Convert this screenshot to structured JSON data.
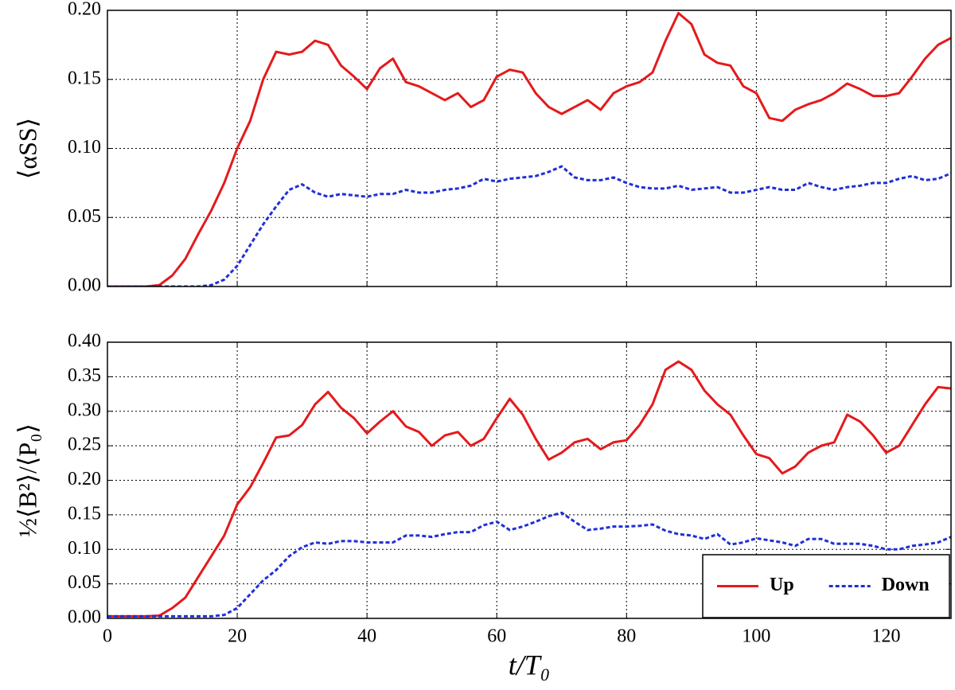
{
  "chart_data": [
    {
      "type": "line",
      "ylabel": "⟨αSS⟩",
      "show_xtick_labels": false,
      "grid": true,
      "xlim": [
        0,
        130
      ],
      "xticks": [
        0,
        20,
        40,
        60,
        80,
        100,
        120
      ],
      "ylim": [
        0,
        0.2
      ],
      "yticks": [
        {
          "value": 0,
          "label": "0.00"
        },
        0.05,
        {
          "value": 0.1,
          "label": "0.10"
        },
        0.15,
        {
          "value": 0.2,
          "label": "0.20"
        }
      ],
      "x": [
        0,
        2,
        4,
        6,
        8,
        10,
        12,
        14,
        16,
        18,
        20,
        22,
        24,
        26,
        28,
        30,
        32,
        34,
        36,
        38,
        40,
        42,
        44,
        46,
        48,
        50,
        52,
        54,
        56,
        58,
        60,
        62,
        64,
        66,
        68,
        70,
        72,
        74,
        76,
        78,
        80,
        82,
        84,
        86,
        88,
        90,
        92,
        94,
        96,
        98,
        100,
        102,
        104,
        106,
        108,
        110,
        112,
        114,
        116,
        118,
        120,
        122,
        124,
        126,
        128,
        130
      ],
      "series": [
        {
          "name": "Up",
          "color": "#e41a1c",
          "dashed": false,
          "values": [
            0,
            0,
            0,
            0,
            0.001,
            0.008,
            0.02,
            0.038,
            0.055,
            0.075,
            0.1,
            0.12,
            0.15,
            0.17,
            0.168,
            0.17,
            0.178,
            0.175,
            0.16,
            0.152,
            0.143,
            0.158,
            0.165,
            0.148,
            0.145,
            0.14,
            0.135,
            0.14,
            0.13,
            0.135,
            0.152,
            0.157,
            0.155,
            0.14,
            0.13,
            0.125,
            0.13,
            0.135,
            0.128,
            0.14,
            0.145,
            0.148,
            0.155,
            0.178,
            0.198,
            0.19,
            0.168,
            0.162,
            0.16,
            0.145,
            0.14,
            0.122,
            0.12,
            0.128,
            0.132,
            0.135,
            0.14,
            0.147,
            0.143,
            0.138,
            0.138,
            0.14,
            0.152,
            0.165,
            0.175,
            0.18
          ]
        },
        {
          "name": "Down",
          "color": "#1f2fd6",
          "dashed": true,
          "values": [
            0,
            0,
            0,
            0,
            0,
            0,
            0,
            0,
            0.001,
            0.005,
            0.015,
            0.03,
            0.045,
            0.058,
            0.07,
            0.074,
            0.068,
            0.065,
            0.067,
            0.066,
            0.065,
            0.067,
            0.067,
            0.07,
            0.068,
            0.068,
            0.07,
            0.071,
            0.073,
            0.078,
            0.076,
            0.078,
            0.079,
            0.08,
            0.083,
            0.087,
            0.079,
            0.077,
            0.077,
            0.079,
            0.075,
            0.072,
            0.071,
            0.071,
            0.073,
            0.07,
            0.071,
            0.072,
            0.068,
            0.068,
            0.07,
            0.072,
            0.07,
            0.07,
            0.075,
            0.072,
            0.07,
            0.072,
            0.073,
            0.075,
            0.075,
            0.078,
            0.08,
            0.077,
            0.078,
            0.082
          ]
        }
      ]
    },
    {
      "type": "line",
      "ylabel": "½⟨B²⟩/⟨P₀⟩",
      "xlabel": "t/T₀",
      "show_xtick_labels": true,
      "grid": true,
      "legend": "lower right",
      "xlim": [
        0,
        130
      ],
      "xticks": [
        0,
        20,
        40,
        60,
        80,
        100,
        120
      ],
      "ylim": [
        0,
        0.4
      ],
      "yticks": [
        {
          "value": 0,
          "label": "0.00"
        },
        0.05,
        {
          "value": 0.1,
          "label": "0.10"
        },
        0.15,
        {
          "value": 0.2,
          "label": "0.20"
        },
        0.25,
        {
          "value": 0.3,
          "label": "0.30"
        },
        0.35,
        {
          "value": 0.4,
          "label": "0.40"
        }
      ],
      "x": [
        0,
        2,
        4,
        6,
        8,
        10,
        12,
        14,
        16,
        18,
        20,
        22,
        24,
        26,
        28,
        30,
        32,
        34,
        36,
        38,
        40,
        42,
        44,
        46,
        48,
        50,
        52,
        54,
        56,
        58,
        60,
        62,
        64,
        66,
        68,
        70,
        72,
        74,
        76,
        78,
        80,
        82,
        84,
        86,
        88,
        90,
        92,
        94,
        96,
        98,
        100,
        102,
        104,
        106,
        108,
        110,
        112,
        114,
        116,
        118,
        120,
        122,
        124,
        126,
        128,
        130
      ],
      "series": [
        {
          "name": "Up",
          "color": "#e41a1c",
          "dashed": false,
          "values": [
            0.003,
            0.003,
            0.003,
            0.003,
            0.004,
            0.015,
            0.03,
            0.06,
            0.09,
            0.12,
            0.165,
            0.19,
            0.225,
            0.262,
            0.265,
            0.28,
            0.31,
            0.328,
            0.305,
            0.29,
            0.268,
            0.285,
            0.3,
            0.278,
            0.27,
            0.25,
            0.265,
            0.27,
            0.25,
            0.26,
            0.29,
            0.318,
            0.295,
            0.26,
            0.23,
            0.24,
            0.255,
            0.26,
            0.245,
            0.255,
            0.258,
            0.28,
            0.31,
            0.36,
            0.372,
            0.36,
            0.33,
            0.31,
            0.295,
            0.265,
            0.238,
            0.232,
            0.21,
            0.22,
            0.24,
            0.25,
            0.255,
            0.295,
            0.285,
            0.265,
            0.24,
            0.25,
            0.28,
            0.31,
            0.335,
            0.333
          ]
        },
        {
          "name": "Down",
          "color": "#1f2fd6",
          "dashed": true,
          "values": [
            0.003,
            0.003,
            0.003,
            0.003,
            0.003,
            0.003,
            0.003,
            0.003,
            0.003,
            0.005,
            0.015,
            0.035,
            0.055,
            0.07,
            0.09,
            0.103,
            0.11,
            0.108,
            0.112,
            0.112,
            0.11,
            0.11,
            0.11,
            0.12,
            0.12,
            0.118,
            0.122,
            0.125,
            0.125,
            0.135,
            0.14,
            0.128,
            0.133,
            0.14,
            0.148,
            0.153,
            0.14,
            0.128,
            0.13,
            0.133,
            0.133,
            0.134,
            0.136,
            0.127,
            0.122,
            0.12,
            0.115,
            0.122,
            0.107,
            0.11,
            0.116,
            0.113,
            0.11,
            0.105,
            0.115,
            0.115,
            0.108,
            0.108,
            0.108,
            0.105,
            0.1,
            0.1,
            0.105,
            0.107,
            0.11,
            0.118
          ]
        }
      ]
    }
  ]
}
